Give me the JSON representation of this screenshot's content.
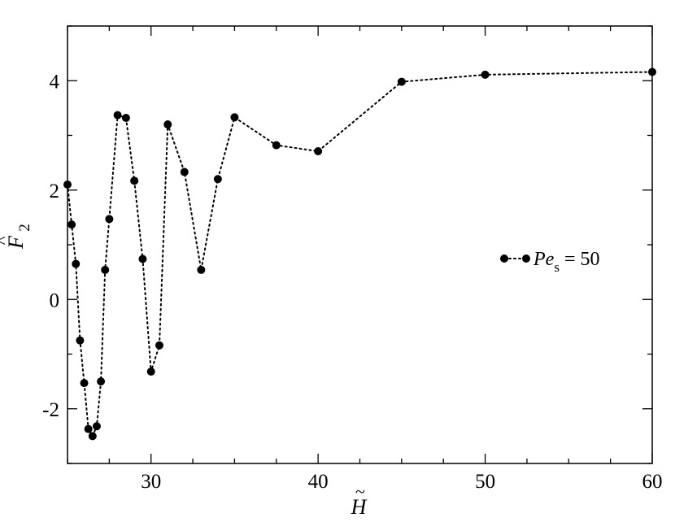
{
  "chart_data": {
    "type": "scatter",
    "x_ticks": [
      30,
      40,
      50,
      60
    ],
    "y_ticks": [
      -2,
      0,
      2,
      4
    ],
    "xlim": [
      25,
      60
    ],
    "ylim": [
      -3,
      5
    ],
    "grid": false,
    "legend_position": "right",
    "xlabel": {
      "symbol": "H",
      "accent": "~"
    },
    "ylabel": {
      "symbol": "F",
      "accent": "^",
      "subscript": "2"
    },
    "series": [
      {
        "name": {
          "text": "Pe",
          "subscript": "s",
          "rest": " = 50"
        },
        "marker": "circle",
        "line_style": "dotted",
        "color": "#000000",
        "points": [
          [
            25.0,
            2.1
          ],
          [
            25.25,
            1.37
          ],
          [
            25.5,
            0.65
          ],
          [
            25.75,
            -0.75
          ],
          [
            26.0,
            -1.53
          ],
          [
            26.25,
            -2.37
          ],
          [
            26.5,
            -2.5
          ],
          [
            26.75,
            -2.32
          ],
          [
            27.0,
            -1.5
          ],
          [
            27.25,
            0.54
          ],
          [
            27.5,
            1.47
          ],
          [
            28.0,
            3.37
          ],
          [
            28.5,
            3.32
          ],
          [
            29.0,
            2.17
          ],
          [
            29.5,
            0.74
          ],
          [
            30.0,
            -1.32
          ],
          [
            30.5,
            -0.84
          ],
          [
            31.0,
            3.2
          ],
          [
            32.0,
            2.33
          ],
          [
            33.0,
            0.54
          ],
          [
            34.0,
            2.2
          ],
          [
            35.0,
            3.33
          ],
          [
            37.5,
            2.82
          ],
          [
            40.0,
            2.71
          ],
          [
            45.0,
            3.98
          ],
          [
            50.0,
            4.11
          ],
          [
            60.0,
            4.16
          ]
        ]
      }
    ]
  }
}
